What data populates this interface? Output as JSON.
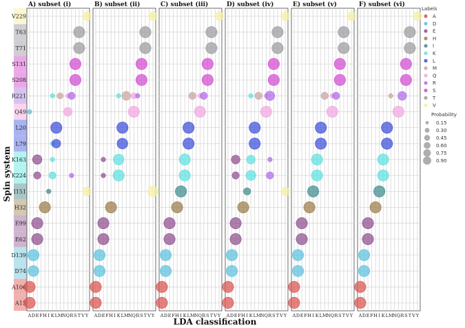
{
  "chart_data": {
    "type": "scatter",
    "ylabel": "Spin system",
    "xlabel": "LDA classification",
    "y_rows": [
      "V229",
      "T63",
      "T71",
      "S131",
      "S208",
      "R221",
      "Q49",
      "L20",
      "L79",
      "K163",
      "K224",
      "I151",
      "H32",
      "E99",
      "E62",
      "D139",
      "D74",
      "A106",
      "A15"
    ],
    "x_categories": [
      "A",
      "D",
      "E",
      "F",
      "H",
      "I",
      "K",
      "L",
      "M",
      "N",
      "Q",
      "R",
      "S",
      "T",
      "V",
      "Y"
    ],
    "label_colors": {
      "A": "#d9534f",
      "D": "#5bc0de",
      "E": "#8e4d8e",
      "H": "#9a7d4a",
      "I": "#3f8a8c",
      "K": "#5ee0e0",
      "L": "#3b4fd8",
      "M": "#c9a3a3",
      "Q": "#f2a6e0",
      "R": "#b06ae8",
      "S": "#d24bd2",
      "T": "#9b9a9e",
      "V": "#f5f0a3"
    },
    "row_band_colors": {
      "V229": "#fbf7d0",
      "T63": "#cfcfd3",
      "T71": "#cfcfd3",
      "S131": "#eba8e8",
      "S208": "#eba8e8",
      "R221": "#d7c3f0",
      "Q49": "#f8d6ee",
      "L20": "#aab3f0",
      "L79": "#aab3f0",
      "K163": "#b5f3f1",
      "K224": "#b5f3f1",
      "I151": "#aac7c8",
      "H32": "#d3c9af",
      "E99": "#cfb3cf",
      "E62": "#cfb3cf",
      "D139": "#b9e3ee",
      "D74": "#b9e3ee",
      "A106": "#f0b0ae",
      "A15": "#f0b0ae"
    },
    "legend": {
      "labels_title": "Labels",
      "labels": [
        "A",
        "D",
        "E",
        "H",
        "I",
        "K",
        "L",
        "M",
        "Q",
        "R",
        "S",
        "T",
        "V"
      ],
      "probability_title": "Probability",
      "probability_values": [
        "0.15",
        "0.30",
        "0.45",
        "0.60",
        "0.75",
        "0.90"
      ],
      "probability_numbers": [
        0.15,
        0.3,
        0.45,
        0.6,
        0.75,
        0.9
      ],
      "placement": "right"
    },
    "panels": [
      {
        "title": "A) subset (i)",
        "points": [
          [
            "V229",
            "Y",
            "V",
            0.3
          ],
          [
            "T63",
            "T",
            "T",
            0.5
          ],
          [
            "T71",
            "T",
            "T",
            0.5
          ],
          [
            "S131",
            "S",
            "S",
            0.5
          ],
          [
            "S208",
            "S",
            "S",
            0.5
          ],
          [
            "R221",
            "K",
            "K",
            0.08
          ],
          [
            "R221",
            "M",
            "M",
            0.15
          ],
          [
            "R221",
            "Q",
            "Q",
            0.08
          ],
          [
            "R221",
            "R",
            "R",
            0.2
          ],
          [
            "Q49",
            "A",
            "D",
            0.08
          ],
          [
            "Q49",
            "Q",
            "Q",
            0.3
          ],
          [
            "L20",
            "L",
            "L",
            0.5
          ],
          [
            "L79",
            "K",
            "K",
            0.08
          ],
          [
            "L79",
            "L",
            "L",
            0.3
          ],
          [
            "K163",
            "E",
            "E",
            0.35
          ],
          [
            "K163",
            "K",
            "K",
            0.08
          ],
          [
            "K224",
            "E",
            "E",
            0.2
          ],
          [
            "K224",
            "K",
            "K",
            0.2
          ],
          [
            "K224",
            "R",
            "R",
            0.08
          ],
          [
            "I151",
            "I",
            "I",
            0.08
          ],
          [
            "I151",
            "Y",
            "V",
            0.3
          ],
          [
            "H32",
            "H",
            "H",
            0.5
          ],
          [
            "E99",
            "E",
            "E",
            0.5
          ],
          [
            "E62",
            "E",
            "E",
            0.5
          ],
          [
            "D139",
            "D",
            "D",
            0.5
          ],
          [
            "D74",
            "D",
            "D",
            0.45
          ],
          [
            "A106",
            "A",
            "A",
            0.5
          ],
          [
            "A15",
            "A",
            "A",
            0.5
          ]
        ]
      },
      {
        "title": "B) subset (ii)",
        "points": [
          [
            "V229",
            "Y",
            "V",
            0.3
          ],
          [
            "T63",
            "T",
            "T",
            0.5
          ],
          [
            "T71",
            "T",
            "T",
            0.5
          ],
          [
            "S131",
            "S",
            "S",
            0.5
          ],
          [
            "S208",
            "S",
            "S",
            0.5
          ],
          [
            "R221",
            "K",
            "K",
            0.08
          ],
          [
            "R221",
            "M",
            "M",
            0.3
          ],
          [
            "R221",
            "Q",
            "Q",
            0.15
          ],
          [
            "R221",
            "R",
            "R",
            0.08
          ],
          [
            "Q49",
            "Q",
            "Q",
            0.5
          ],
          [
            "L20",
            "L",
            "L",
            0.5
          ],
          [
            "L79",
            "L",
            "L",
            0.45
          ],
          [
            "K163",
            "E",
            "E",
            0.08
          ],
          [
            "K163",
            "K",
            "K",
            0.45
          ],
          [
            "K224",
            "E",
            "E",
            0.08
          ],
          [
            "K224",
            "K",
            "K",
            0.5
          ],
          [
            "I151",
            "Y",
            "V",
            0.45
          ],
          [
            "H32",
            "H",
            "H",
            0.5
          ],
          [
            "E99",
            "E",
            "E",
            0.5
          ],
          [
            "E62",
            "E",
            "E",
            0.5
          ],
          [
            "D139",
            "D",
            "D",
            0.5
          ],
          [
            "D74",
            "D",
            "D",
            0.5
          ],
          [
            "A106",
            "A",
            "A",
            0.5
          ],
          [
            "A15",
            "A",
            "A",
            0.5
          ]
        ]
      },
      {
        "title": "C) subset (iii)",
        "points": [
          [
            "V229",
            "Y",
            "V",
            0.3
          ],
          [
            "T63",
            "T",
            "T",
            0.5
          ],
          [
            "T71",
            "T",
            "T",
            0.5
          ],
          [
            "S131",
            "S",
            "S",
            0.5
          ],
          [
            "S208",
            "S",
            "S",
            0.5
          ],
          [
            "R221",
            "M",
            "M",
            0.2
          ],
          [
            "R221",
            "Q",
            "Q",
            0.08
          ],
          [
            "R221",
            "R",
            "R",
            0.2
          ],
          [
            "Q49",
            "Q",
            "Q",
            0.5
          ],
          [
            "L20",
            "L",
            "L",
            0.5
          ],
          [
            "L79",
            "L",
            "L",
            0.5
          ],
          [
            "K163",
            "K",
            "K",
            0.5
          ],
          [
            "K224",
            "K",
            "K",
            0.5
          ],
          [
            "I151",
            "I",
            "I",
            0.5
          ],
          [
            "H32",
            "H",
            "H",
            0.5
          ],
          [
            "E99",
            "E",
            "E",
            0.5
          ],
          [
            "E62",
            "E",
            "E",
            0.5
          ],
          [
            "D139",
            "D",
            "D",
            0.5
          ],
          [
            "D74",
            "D",
            "D",
            0.5
          ],
          [
            "A106",
            "A",
            "A",
            0.5
          ],
          [
            "A15",
            "A",
            "A",
            0.5
          ]
        ]
      },
      {
        "title": "D) subset (iv)",
        "points": [
          [
            "V229",
            "Y",
            "V",
            0.3
          ],
          [
            "T63",
            "T",
            "T",
            0.5
          ],
          [
            "T71",
            "T",
            "T",
            0.5
          ],
          [
            "S131",
            "S",
            "S",
            0.5
          ],
          [
            "S208",
            "S",
            "S",
            0.5
          ],
          [
            "R221",
            "K",
            "K",
            0.08
          ],
          [
            "R221",
            "M",
            "M",
            0.2
          ],
          [
            "R221",
            "Q",
            "Q",
            0.08
          ],
          [
            "R221",
            "R",
            "R",
            0.35
          ],
          [
            "Q49",
            "Q",
            "Q",
            0.5
          ],
          [
            "L20",
            "L",
            "L",
            0.5
          ],
          [
            "L79",
            "L",
            "L",
            0.5
          ],
          [
            "K163",
            "E",
            "E",
            0.3
          ],
          [
            "K163",
            "K",
            "K",
            0.3
          ],
          [
            "K163",
            "R",
            "R",
            0.08
          ],
          [
            "K224",
            "E",
            "E",
            0.2
          ],
          [
            "K224",
            "K",
            "K",
            0.4
          ],
          [
            "K224",
            "R",
            "R",
            0.2
          ],
          [
            "I151",
            "I",
            "I",
            0.2
          ],
          [
            "I151",
            "Y",
            "V",
            0.3
          ],
          [
            "H32",
            "H",
            "H",
            0.5
          ],
          [
            "E99",
            "E",
            "E",
            0.5
          ],
          [
            "E62",
            "E",
            "E",
            0.5
          ],
          [
            "D139",
            "D",
            "D",
            0.5
          ],
          [
            "D74",
            "D",
            "D",
            0.5
          ],
          [
            "A106",
            "A",
            "A",
            0.5
          ],
          [
            "A15",
            "A",
            "A",
            0.5
          ]
        ]
      },
      {
        "title": "E) subset (v)",
        "points": [
          [
            "V229",
            "Y",
            "V",
            0.3
          ],
          [
            "T63",
            "T",
            "T",
            0.5
          ],
          [
            "T71",
            "T",
            "T",
            0.5
          ],
          [
            "S131",
            "S",
            "S",
            0.5
          ],
          [
            "S208",
            "S",
            "S",
            0.5
          ],
          [
            "R221",
            "M",
            "M",
            0.2
          ],
          [
            "R221",
            "Q",
            "Q",
            0.08
          ],
          [
            "R221",
            "R",
            "R",
            0.2
          ],
          [
            "Q49",
            "Q",
            "Q",
            0.5
          ],
          [
            "L20",
            "L",
            "L",
            0.5
          ],
          [
            "L79",
            "L",
            "L",
            0.5
          ],
          [
            "K163",
            "K",
            "K",
            0.5
          ],
          [
            "K224",
            "K",
            "K",
            0.5
          ],
          [
            "I151",
            "I",
            "I",
            0.5
          ],
          [
            "H32",
            "H",
            "H",
            0.5
          ],
          [
            "E99",
            "E",
            "E",
            0.5
          ],
          [
            "E62",
            "E",
            "E",
            0.5
          ],
          [
            "D139",
            "D",
            "D",
            0.5
          ],
          [
            "D74",
            "D",
            "D",
            0.5
          ],
          [
            "A106",
            "A",
            "A",
            0.5
          ],
          [
            "A15",
            "A",
            "A",
            0.5
          ]
        ]
      },
      {
        "title": "F) subset (vi)",
        "points": [
          [
            "V229",
            "Y",
            "V",
            0.3
          ],
          [
            "T63",
            "T",
            "T",
            0.5
          ],
          [
            "T71",
            "T",
            "T",
            0.5
          ],
          [
            "S131",
            "S",
            "S",
            0.5
          ],
          [
            "S208",
            "S",
            "S",
            0.5
          ],
          [
            "R221",
            "M",
            "M",
            0.08
          ],
          [
            "R221",
            "R",
            "R",
            0.3
          ],
          [
            "Q49",
            "Q",
            "Q",
            0.5
          ],
          [
            "L20",
            "L",
            "L",
            0.5
          ],
          [
            "L79",
            "L",
            "L",
            0.5
          ],
          [
            "K163",
            "K",
            "K",
            0.5
          ],
          [
            "K224",
            "K",
            "K",
            0.5
          ],
          [
            "I151",
            "I",
            "I",
            0.5
          ],
          [
            "H32",
            "H",
            "H",
            0.5
          ],
          [
            "E99",
            "E",
            "E",
            0.5
          ],
          [
            "E62",
            "E",
            "E",
            0.5
          ],
          [
            "D139",
            "D",
            "D",
            0.5
          ],
          [
            "D74",
            "D",
            "D",
            0.5
          ],
          [
            "A106",
            "A",
            "A",
            0.5
          ],
          [
            "A15",
            "A",
            "A",
            0.5
          ]
        ]
      }
    ]
  }
}
